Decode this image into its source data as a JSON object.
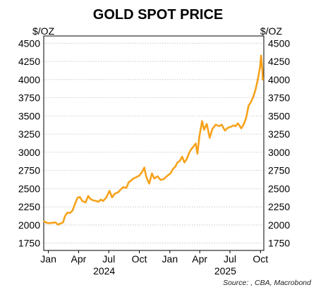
{
  "chart_data": {
    "type": "line",
    "title": "GOLD SPOT PRICE",
    "left_unit": "$/OZ",
    "right_unit": "$/OZ",
    "source": "Source: , CBA, Macrobond",
    "ylim": [
      1650,
      4600
    ],
    "yticks": [
      1750,
      2000,
      2250,
      2500,
      2750,
      3000,
      3250,
      3500,
      3750,
      4000,
      4250,
      4500
    ],
    "ytick_labels": [
      "1750",
      "2000",
      "2250",
      "2500",
      "2750",
      "3000",
      "3250",
      "3500",
      "3750",
      "4000",
      "4250",
      "4500"
    ],
    "grid": true,
    "x_domain": [
      "2024-01-01",
      "2025-10-25"
    ],
    "x_ticks": [
      {
        "date": "2024-01-15",
        "label": "Jan"
      },
      {
        "date": "2024-04-15",
        "label": "Apr"
      },
      {
        "date": "2024-07-15",
        "label": "Jul"
      },
      {
        "date": "2024-10-15",
        "label": "Oct"
      },
      {
        "date": "2025-01-15",
        "label": "Jan"
      },
      {
        "date": "2025-04-15",
        "label": "Apr"
      },
      {
        "date": "2025-07-15",
        "label": "Jul"
      },
      {
        "date": "2025-10-15",
        "label": "Oct"
      }
    ],
    "year_labels": [
      {
        "date": "2024-07-01",
        "label": "2024"
      },
      {
        "date": "2025-07-01",
        "label": "2025"
      }
    ],
    "color": "#f7a21b",
    "series": [
      {
        "x": [
          "2024-01-02",
          "2024-01-10",
          "2024-01-18",
          "2024-01-26",
          "2024-02-05",
          "2024-02-13",
          "2024-02-20",
          "2024-02-28",
          "2024-03-05",
          "2024-03-12",
          "2024-03-20",
          "2024-03-28",
          "2024-04-05",
          "2024-04-12",
          "2024-04-19",
          "2024-04-26",
          "2024-05-06",
          "2024-05-14",
          "2024-05-20",
          "2024-05-28",
          "2024-06-07",
          "2024-06-14",
          "2024-06-21",
          "2024-06-28",
          "2024-07-08",
          "2024-07-17",
          "2024-07-25",
          "2024-08-02",
          "2024-08-12",
          "2024-08-20",
          "2024-08-28",
          "2024-09-06",
          "2024-09-13",
          "2024-09-20",
          "2024-09-27",
          "2024-10-07",
          "2024-10-15",
          "2024-10-22",
          "2024-10-30",
          "2024-11-05",
          "2024-11-14",
          "2024-11-22",
          "2024-11-29",
          "2024-12-09",
          "2024-12-18",
          "2024-12-27",
          "2025-01-08",
          "2025-01-17",
          "2025-01-24",
          "2025-01-31",
          "2025-02-07",
          "2025-02-14",
          "2025-02-21",
          "2025-02-28",
          "2025-03-07",
          "2025-03-14",
          "2025-03-20",
          "2025-03-28",
          "2025-04-03",
          "2025-04-08",
          "2025-04-14",
          "2025-04-22",
          "2025-04-28",
          "2025-05-06",
          "2025-05-15",
          "2025-05-23",
          "2025-06-02",
          "2025-06-13",
          "2025-06-20",
          "2025-06-30",
          "2025-07-10",
          "2025-07-18",
          "2025-07-25",
          "2025-08-01",
          "2025-08-08",
          "2025-08-18",
          "2025-08-26",
          "2025-09-02",
          "2025-09-09",
          "2025-09-16",
          "2025-09-23",
          "2025-09-30",
          "2025-10-07",
          "2025-10-14",
          "2025-10-17",
          "2025-10-21",
          "2025-10-22"
        ],
        "y": [
          2050,
          2030,
          2025,
          2030,
          2035,
          2005,
          2020,
          2035,
          2120,
          2170,
          2165,
          2200,
          2300,
          2375,
          2385,
          2330,
          2310,
          2400,
          2360,
          2340,
          2330,
          2320,
          2350,
          2330,
          2380,
          2470,
          2380,
          2430,
          2450,
          2490,
          2520,
          2510,
          2590,
          2610,
          2640,
          2660,
          2680,
          2720,
          2790,
          2660,
          2570,
          2710,
          2640,
          2670,
          2620,
          2630,
          2680,
          2710,
          2770,
          2800,
          2860,
          2880,
          2940,
          2860,
          2910,
          2990,
          3040,
          3085,
          3120,
          2980,
          3220,
          3430,
          3310,
          3390,
          3200,
          3320,
          3380,
          3360,
          3380,
          3300,
          3340,
          3350,
          3370,
          3360,
          3400,
          3330,
          3390,
          3480,
          3640,
          3690,
          3760,
          3860,
          4000,
          4180,
          4330,
          4110,
          4000
        ]
      }
    ]
  }
}
